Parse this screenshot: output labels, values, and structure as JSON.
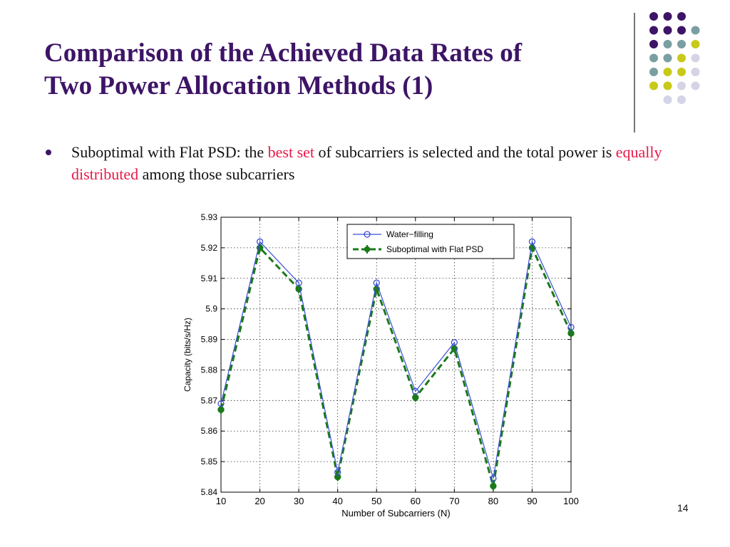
{
  "slide": {
    "title_lines": [
      "Comparison of the Achieved Data Rates of",
      "Two Power Allocation Methods (1)"
    ],
    "bullet": {
      "part1": "Suboptimal with Flat PSD: the ",
      "highlight1": "best set",
      "part2": " of subcarriers is selected and the total power is ",
      "highlight2": "equally distributed",
      "part3": " among those subcarriers"
    },
    "page_number": "14"
  },
  "decor": {
    "colors": {
      "purple": "#3d1466",
      "teal": "#7a9fa2",
      "yellow": "#c9c91a",
      "lavender": "#d4d4e6",
      "title": "#3d1466",
      "highlight": "#e8194a"
    },
    "dot_grid": [
      [
        "purple",
        "purple",
        "purple",
        null
      ],
      [
        "purple",
        "purple",
        "purple",
        "teal"
      ],
      [
        "purple",
        "teal",
        "teal",
        "yellow"
      ],
      [
        "teal",
        "teal",
        "yellow",
        "lavender"
      ],
      [
        "teal",
        "yellow",
        "yellow",
        "lavender"
      ],
      [
        "yellow",
        "yellow",
        "lavender",
        "lavender"
      ],
      [
        null,
        "lavender",
        "lavender",
        null
      ]
    ]
  },
  "chart_data": {
    "type": "line",
    "title": "",
    "xlabel": "Number of Subcarriers (N)",
    "ylabel": "Capacity (bits/s/Hz)",
    "x": [
      10,
      20,
      30,
      40,
      50,
      60,
      70,
      80,
      90,
      100
    ],
    "xlim": [
      10,
      100
    ],
    "ylim": [
      5.84,
      5.93
    ],
    "xticks": [
      10,
      20,
      30,
      40,
      50,
      60,
      70,
      80,
      90,
      100
    ],
    "yticks": [
      5.84,
      5.85,
      5.86,
      5.87,
      5.88,
      5.89,
      5.9,
      5.91,
      5.92,
      5.93
    ],
    "ytick_labels": [
      "5.84",
      "5.85",
      "5.86",
      "5.87",
      "5.88",
      "5.89",
      "5.9",
      "5.91",
      "5.92",
      "5.93"
    ],
    "grid": true,
    "legend_position": "top-right",
    "series": [
      {
        "name": "Water−filling",
        "values": [
          5.869,
          5.922,
          5.9085,
          5.8465,
          5.9085,
          5.873,
          5.889,
          5.8445,
          5.922,
          5.894
        ],
        "color": "#3a4fd6",
        "marker": "open-circle",
        "line": "solid"
      },
      {
        "name": "Suboptimal with Flat PSD",
        "values": [
          5.867,
          5.92,
          5.9065,
          5.845,
          5.9065,
          5.871,
          5.887,
          5.842,
          5.92,
          5.892
        ],
        "color": "#1a7a1a",
        "marker": "filled-circle",
        "line": "dashed"
      }
    ]
  }
}
